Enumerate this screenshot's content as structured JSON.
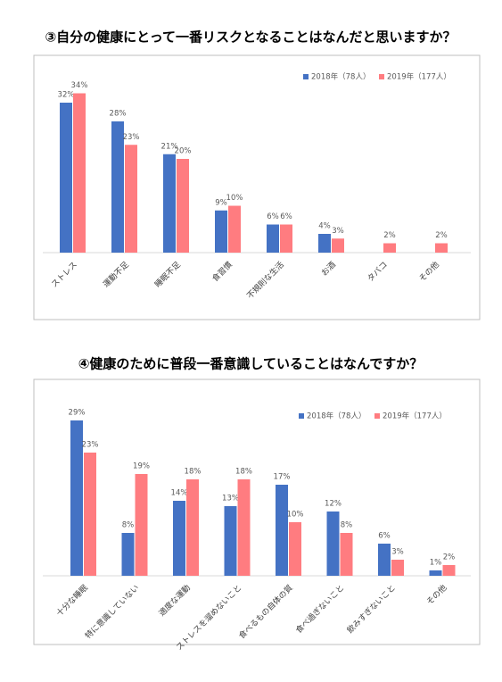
{
  "chart_data": [
    {
      "type": "bar",
      "title": "③自分の健康にとって一番リスクとなることはなんだと思いますか？",
      "categories": [
        "ストレス",
        "運動不足",
        "睡眠不足",
        "食習慣",
        "不規則な生活",
        "お酒",
        "タバコ",
        "その他"
      ],
      "series": [
        {
          "name": "2018年（78人）",
          "color": "#4472c4",
          "values": [
            32,
            28,
            21,
            9,
            6,
            4,
            null,
            null
          ],
          "value_labels": [
            "32%",
            "28%",
            "21%",
            "9%",
            "6%",
            "4%",
            null,
            null
          ]
        },
        {
          "name": "2019年（177人）",
          "color": "#ff7c80",
          "values": [
            34,
            23,
            20,
            10,
            6,
            3,
            2,
            2
          ],
          "value_labels": [
            "34%",
            "23%",
            "20%",
            "10%",
            "6%",
            "3%",
            "2%",
            "2%"
          ]
        }
      ],
      "legend": "top-right"
    },
    {
      "type": "bar",
      "title": "④健康のために普段一番意識していることはなんですか？",
      "categories": [
        "十分な睡眠",
        "特に意識していない",
        "適度な運動",
        "ストレスを溜めないこと",
        "食べるもの自体の質",
        "食べ過ぎないこと",
        "飲みすぎないこと",
        "その他"
      ],
      "series": [
        {
          "name": "2018年（78人）",
          "color": "#4472c4",
          "values": [
            29,
            8,
            14,
            13,
            17,
            12,
            6,
            1
          ],
          "value_labels": [
            "29%",
            "8%",
            "14%",
            "13%",
            "17%",
            "12%",
            "6%",
            "1%"
          ]
        },
        {
          "name": "2019年（177人）",
          "color": "#ff7c80",
          "values": [
            23,
            19,
            18,
            18,
            10,
            8,
            3,
            2
          ],
          "value_labels": [
            "23%",
            "19%",
            "18%",
            "18%",
            "10%",
            "8%",
            "3%",
            "2%"
          ]
        }
      ],
      "legend": "top-right"
    }
  ]
}
